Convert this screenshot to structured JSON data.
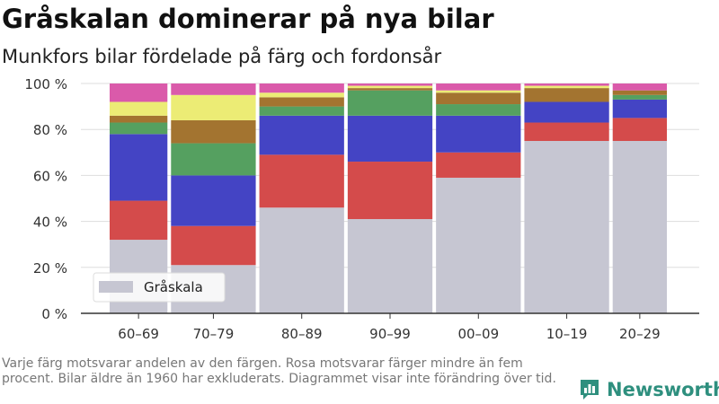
{
  "header": {
    "title": "Gråskalan dominerar på nya bilar",
    "subtitle": "Munkfors bilar fördelade på färg och fordonsår"
  },
  "chart_data": {
    "type": "bar",
    "stacked": true,
    "categories": [
      "60–69",
      "70–79",
      "80–89",
      "90–99",
      "00–09",
      "10–19",
      "20–29"
    ],
    "series": [
      {
        "name": "Gråskala",
        "color": "#c6c6d2",
        "values": [
          32,
          21,
          46,
          41,
          59,
          75,
          75
        ]
      },
      {
        "color": "#d44b4b",
        "values": [
          17,
          17,
          23,
          25,
          11,
          8,
          10
        ]
      },
      {
        "color": "#4444c4",
        "values": [
          29,
          22,
          17,
          20,
          16,
          9,
          8
        ]
      },
      {
        "color": "#55a060",
        "values": [
          5,
          14,
          4,
          11,
          5,
          0,
          2
        ]
      },
      {
        "color": "#a37430",
        "values": [
          3,
          10,
          4,
          1,
          5,
          6,
          2
        ]
      },
      {
        "color": "#ecec75",
        "values": [
          6,
          11,
          2,
          1,
          1,
          1,
          0
        ]
      },
      {
        "color": "#da5aaa",
        "values": [
          8,
          5,
          4,
          1,
          3,
          1,
          3
        ]
      }
    ],
    "ylim": [
      0,
      100
    ],
    "yticks": [
      0,
      20,
      40,
      60,
      80,
      100
    ],
    "ytick_labels": [
      "0 %",
      "20 %",
      "40 %",
      "60 %",
      "80 %",
      "100 %"
    ],
    "grid": true,
    "legend": {
      "position": "bottom-left",
      "entries": [
        "Gråskala"
      ]
    }
  },
  "note": "Varje färg motsvarar andelen av den färgen. Rosa motsvarar färger mindre än fem procent. Bilar äldre än 1960 har exkluderats. Diagrammet visar inte förändring över tid.",
  "brand": {
    "name": "Newsworthy",
    "logo_icon": "bar-chart-logo-icon",
    "color": "#2e8f7e"
  }
}
